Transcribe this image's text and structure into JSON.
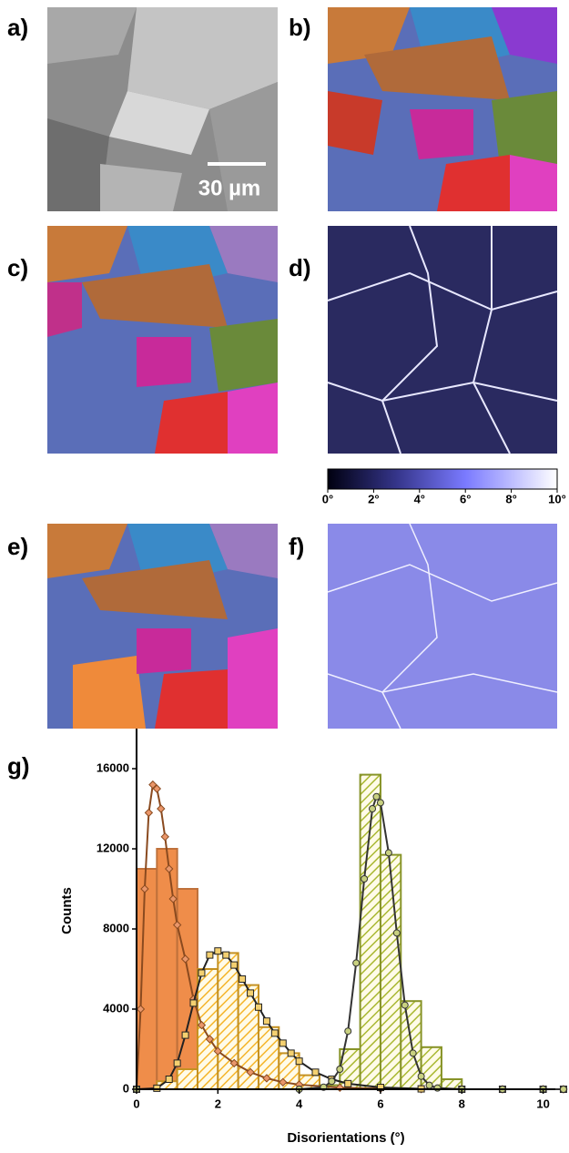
{
  "panels": {
    "labels": [
      "a)",
      "b)",
      "c)",
      "d)",
      "e)",
      "f)",
      "g)"
    ],
    "scale_bar": "30 µm"
  },
  "colorbar": {
    "lim": [
      0,
      10
    ],
    "ticks": [
      {
        "value": 0,
        "label": "0°"
      },
      {
        "value": 2,
        "label": "2°"
      },
      {
        "value": 4,
        "label": "4°"
      },
      {
        "value": 6,
        "label": "6°"
      },
      {
        "value": 8,
        "label": "8°"
      },
      {
        "value": 10,
        "label": "10°"
      }
    ]
  },
  "chart_data": {
    "type": "histogram",
    "x_label": "Disorientations (°)",
    "y_label": "Counts",
    "xlim": [
      0,
      10.3
    ],
    "xticks": [
      0,
      2,
      4,
      6,
      8,
      10
    ],
    "ylim": [
      0,
      18000
    ],
    "yticks": [
      0,
      4000,
      8000,
      12000,
      16000
    ],
    "bins": [
      0,
      0.5,
      1,
      1.5,
      2,
      2.5,
      3,
      3.5,
      4,
      4.5,
      5,
      5.5,
      6,
      6.5,
      7,
      7.5,
      8,
      8.5,
      9,
      9.5,
      10,
      10.5
    ],
    "series": [
      {
        "color": "#ef8d4a",
        "hatch": false,
        "values": [
          11000,
          12000,
          10000,
          1400,
          1200,
          900,
          500,
          200,
          100,
          0,
          0,
          0,
          0,
          0,
          0,
          0,
          0,
          0,
          0,
          0,
          0
        ]
      },
      {
        "color": "#f5b52a",
        "hatch": true,
        "values": [
          0,
          400,
          1000,
          6000,
          6800,
          5200,
          3100,
          1800,
          700,
          200,
          0,
          0,
          0,
          0,
          0,
          0,
          0,
          0,
          0,
          0,
          0
        ]
      },
      {
        "color": "#a9b832",
        "hatch": true,
        "values": [
          0,
          0,
          0,
          0,
          0,
          0,
          0,
          0,
          0,
          200,
          2000,
          15700,
          11700,
          4400,
          2100,
          500,
          0,
          0,
          0,
          0,
          0
        ]
      }
    ],
    "fits": [
      {
        "type": "line",
        "color": "#8a4a1f",
        "marker": "diamond",
        "marker_color": "#e9966a",
        "x": [
          0,
          0.1,
          0.2,
          0.3,
          0.4,
          0.5,
          0.6,
          0.7,
          0.8,
          0.9,
          1.0,
          1.2,
          1.4,
          1.6,
          1.8,
          2.0,
          2.4,
          2.8,
          3.2,
          3.6,
          4.0,
          5,
          6,
          7,
          8,
          9,
          10,
          10.5
        ],
        "values": [
          0,
          4000,
          10000,
          13800,
          15200,
          15000,
          14000,
          12600,
          11000,
          9500,
          8200,
          6500,
          4500,
          3200,
          2500,
          1900,
          1300,
          850,
          550,
          350,
          230,
          80,
          30,
          10,
          0,
          0,
          0,
          0
        ]
      },
      {
        "type": "line",
        "color": "#222222",
        "marker": "square",
        "marker_color": "#f4d070",
        "x": [
          0,
          0.5,
          0.8,
          1.0,
          1.2,
          1.4,
          1.6,
          1.8,
          2.0,
          2.2,
          2.4,
          2.6,
          2.8,
          3.0,
          3.2,
          3.4,
          3.6,
          3.8,
          4.0,
          4.4,
          4.8,
          5.2,
          6,
          7,
          8,
          9,
          10,
          10.5
        ],
        "values": [
          0,
          50,
          500,
          1300,
          2700,
          4300,
          5800,
          6700,
          6900,
          6700,
          6200,
          5500,
          4800,
          4100,
          3400,
          2800,
          2300,
          1800,
          1400,
          850,
          500,
          280,
          90,
          20,
          0,
          0,
          0,
          0
        ]
      },
      {
        "type": "line",
        "color": "#333333",
        "marker": "circle",
        "marker_color": "#c8d080",
        "x": [
          0,
          4,
          4.6,
          4.8,
          5.0,
          5.2,
          5.4,
          5.6,
          5.8,
          5.9,
          6.0,
          6.2,
          6.4,
          6.6,
          6.8,
          7.0,
          7.2,
          7.4,
          8,
          9,
          10,
          10.5
        ],
        "values": [
          0,
          0,
          100,
          400,
          1000,
          2900,
          6300,
          10500,
          14000,
          14600,
          14300,
          11800,
          7800,
          4200,
          1800,
          650,
          200,
          60,
          0,
          0,
          0,
          0
        ]
      }
    ]
  }
}
